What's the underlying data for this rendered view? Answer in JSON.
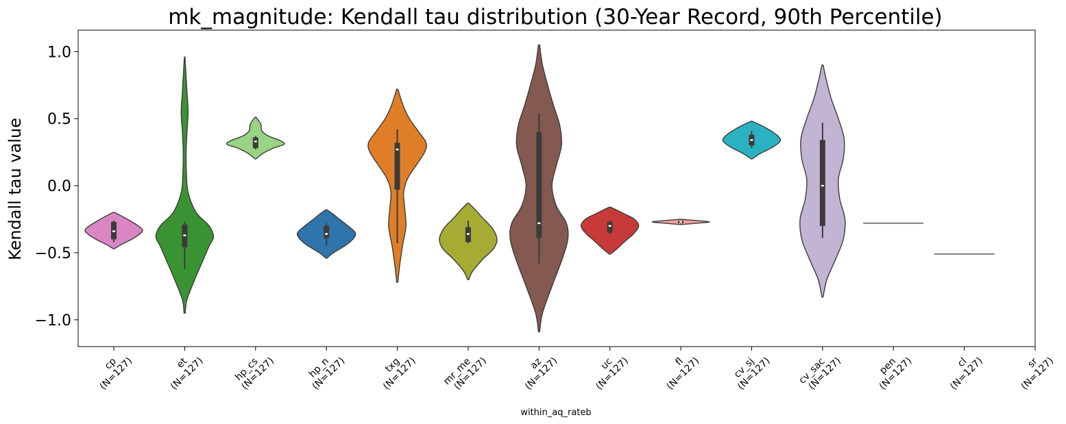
{
  "chart_data": {
    "type": "violin",
    "title": "mk_magnitude: Kendall tau distribution (30-Year Record, 90th Percentile)",
    "xlabel": "within_aq_rateb",
    "ylabel": "Kendall tau value",
    "ylim": [
      -1.2,
      1.16
    ],
    "yticks": [
      1.0,
      0.5,
      0.0,
      -0.5,
      -1.0
    ],
    "ytick_labels": [
      "1.0",
      "0.5",
      "0.0",
      "−0.5",
      "−1.0"
    ],
    "grid": false,
    "legend": "none",
    "categories": [
      {
        "label1": "cp",
        "label2": "(N=127)",
        "color": "#da86c5",
        "extent": [
          -0.47,
          -0.2
        ],
        "profile": [
          [
            -0.47,
            0.02
          ],
          [
            -0.44,
            0.25
          ],
          [
            -0.4,
            0.62
          ],
          [
            -0.36,
            0.9
          ],
          [
            -0.33,
            1.0
          ],
          [
            -0.3,
            0.85
          ],
          [
            -0.26,
            0.55
          ],
          [
            -0.23,
            0.3
          ],
          [
            -0.2,
            0.03
          ]
        ],
        "q1": -0.4,
        "median": -0.34,
        "q3": -0.27,
        "whisker": [
          -0.42,
          -0.26
        ]
      },
      {
        "label1": "et",
        "label2": "(N=127)",
        "color": "#3a9332",
        "extent": [
          -0.95,
          0.96
        ],
        "profile": [
          [
            -0.95,
            0.02
          ],
          [
            -0.85,
            0.08
          ],
          [
            -0.7,
            0.35
          ],
          [
            -0.55,
            0.65
          ],
          [
            -0.45,
            0.85
          ],
          [
            -0.38,
            1.0
          ],
          [
            -0.3,
            0.85
          ],
          [
            -0.2,
            0.4
          ],
          [
            -0.05,
            0.12
          ],
          [
            0.1,
            0.06
          ],
          [
            0.25,
            0.05
          ],
          [
            0.4,
            0.08
          ],
          [
            0.55,
            0.12
          ],
          [
            0.7,
            0.08
          ],
          [
            0.85,
            0.04
          ],
          [
            0.96,
            0.01
          ]
        ],
        "q1": -0.46,
        "median": -0.37,
        "q3": -0.29,
        "whisker": [
          -0.62,
          -0.27
        ]
      },
      {
        "label1": "hp_cs",
        "label2": "(N=127)",
        "color": "#98d483",
        "extent": [
          0.2,
          0.51
        ],
        "profile": [
          [
            0.2,
            0.02
          ],
          [
            0.24,
            0.25
          ],
          [
            0.28,
            0.62
          ],
          [
            0.31,
            1.0
          ],
          [
            0.34,
            0.82
          ],
          [
            0.37,
            0.45
          ],
          [
            0.41,
            0.22
          ],
          [
            0.46,
            0.18
          ],
          [
            0.51,
            0.02
          ]
        ],
        "q1": 0.28,
        "median": 0.33,
        "q3": 0.36,
        "whisker": [
          0.27,
          0.37
        ]
      },
      {
        "label1": "hp_n",
        "label2": "(N=127)",
        "color": "#2f75ac",
        "extent": [
          -0.54,
          -0.18
        ],
        "profile": [
          [
            -0.54,
            0.02
          ],
          [
            -0.5,
            0.25
          ],
          [
            -0.44,
            0.7
          ],
          [
            -0.39,
            0.95
          ],
          [
            -0.35,
            1.0
          ],
          [
            -0.3,
            0.75
          ],
          [
            -0.25,
            0.45
          ],
          [
            -0.21,
            0.22
          ],
          [
            -0.18,
            0.02
          ]
        ],
        "q1": -0.39,
        "median": -0.36,
        "q3": -0.3,
        "whisker": [
          -0.45,
          -0.28
        ]
      },
      {
        "label1": "txg",
        "label2": "(N=127)",
        "color": "#e07e27",
        "extent": [
          -0.72,
          0.72
        ],
        "profile": [
          [
            -0.72,
            0.02
          ],
          [
            -0.6,
            0.08
          ],
          [
            -0.45,
            0.18
          ],
          [
            -0.3,
            0.3
          ],
          [
            -0.15,
            0.25
          ],
          [
            -0.05,
            0.22
          ],
          [
            0.05,
            0.35
          ],
          [
            0.15,
            0.65
          ],
          [
            0.25,
            0.95
          ],
          [
            0.32,
            1.0
          ],
          [
            0.4,
            0.75
          ],
          [
            0.5,
            0.42
          ],
          [
            0.6,
            0.2
          ],
          [
            0.72,
            0.02
          ]
        ],
        "q1": -0.03,
        "median": 0.27,
        "q3": 0.32,
        "whisker": [
          -0.43,
          0.42
        ]
      },
      {
        "label1": "mr_me",
        "label2": "(N=127)",
        "color": "#a6ab34",
        "extent": [
          -0.7,
          -0.13
        ],
        "profile": [
          [
            -0.7,
            0.02
          ],
          [
            -0.64,
            0.15
          ],
          [
            -0.55,
            0.5
          ],
          [
            -0.47,
            0.88
          ],
          [
            -0.4,
            1.0
          ],
          [
            -0.32,
            0.85
          ],
          [
            -0.24,
            0.5
          ],
          [
            -0.18,
            0.25
          ],
          [
            -0.13,
            0.02
          ]
        ],
        "q1": -0.42,
        "median": -0.36,
        "q3": -0.31,
        "whisker": [
          -0.43,
          -0.26
        ]
      },
      {
        "label1": "az",
        "label2": "(N=127)",
        "color": "#845950",
        "extent": [
          -1.09,
          1.05
        ],
        "profile": [
          [
            -1.09,
            0.02
          ],
          [
            -0.95,
            0.12
          ],
          [
            -0.75,
            0.45
          ],
          [
            -0.55,
            0.8
          ],
          [
            -0.4,
            1.0
          ],
          [
            -0.28,
            0.95
          ],
          [
            -0.15,
            0.6
          ],
          [
            0.0,
            0.45
          ],
          [
            0.15,
            0.6
          ],
          [
            0.3,
            0.78
          ],
          [
            0.45,
            0.72
          ],
          [
            0.6,
            0.5
          ],
          [
            0.75,
            0.3
          ],
          [
            0.9,
            0.12
          ],
          [
            1.05,
            0.02
          ]
        ],
        "q1": -0.39,
        "median": -0.28,
        "q3": 0.4,
        "whisker": [
          -0.58,
          0.54
        ]
      },
      {
        "label1": "uc",
        "label2": "(N=127)",
        "color": "#c73a39",
        "extent": [
          -0.51,
          -0.16
        ],
        "profile": [
          [
            -0.51,
            0.02
          ],
          [
            -0.47,
            0.25
          ],
          [
            -0.41,
            0.55
          ],
          [
            -0.36,
            0.82
          ],
          [
            -0.3,
            1.0
          ],
          [
            -0.25,
            0.85
          ],
          [
            -0.21,
            0.5
          ],
          [
            -0.18,
            0.22
          ],
          [
            -0.16,
            0.02
          ]
        ],
        "q1": -0.35,
        "median": -0.3,
        "q3": -0.27,
        "whisker": [
          -0.36,
          -0.26
        ]
      },
      {
        "label1": "fl",
        "label2": "(N=127)",
        "color": "#f4a09b",
        "extent": [
          -0.29,
          -0.25
        ],
        "profile": [
          [
            -0.29,
            0.02
          ],
          [
            -0.28,
            0.55
          ],
          [
            -0.27,
            1.0
          ],
          [
            -0.26,
            0.55
          ],
          [
            -0.25,
            0.02
          ]
        ],
        "q1": -0.28,
        "median": -0.27,
        "q3": -0.26,
        "whisker": [
          -0.28,
          -0.26
        ]
      },
      {
        "label1": "cv_sj",
        "label2": "(N=127)",
        "color": "#2bb2c2",
        "extent": [
          0.2,
          0.48
        ],
        "profile": [
          [
            0.2,
            0.02
          ],
          [
            0.24,
            0.3
          ],
          [
            0.29,
            0.75
          ],
          [
            0.34,
            1.0
          ],
          [
            0.39,
            0.8
          ],
          [
            0.44,
            0.42
          ],
          [
            0.48,
            0.02
          ]
        ],
        "q1": 0.3,
        "median": 0.34,
        "q3": 0.38,
        "whisker": [
          0.28,
          0.41
        ]
      },
      {
        "label1": "cv_sac",
        "label2": "(N=127)",
        "color": "#c2b4d3",
        "extent": [
          -0.83,
          0.9
        ],
        "profile": [
          [
            -0.83,
            0.02
          ],
          [
            -0.7,
            0.15
          ],
          [
            -0.55,
            0.45
          ],
          [
            -0.4,
            0.72
          ],
          [
            -0.25,
            0.78
          ],
          [
            -0.1,
            0.6
          ],
          [
            0.05,
            0.55
          ],
          [
            0.2,
            0.72
          ],
          [
            0.35,
            0.75
          ],
          [
            0.5,
            0.55
          ],
          [
            0.65,
            0.3
          ],
          [
            0.8,
            0.12
          ],
          [
            0.9,
            0.02
          ]
        ],
        "q1": -0.3,
        "median": 0.0,
        "q3": 0.34,
        "whisker": [
          -0.39,
          0.47
        ]
      },
      {
        "label1": "pen",
        "label2": "(N=127)",
        "color": "#5a5a5a",
        "value": -0.28
      },
      {
        "label1": "cl",
        "label2": "(N=127)",
        "color": "#5a5a5a",
        "value": -0.51
      },
      {
        "label1": "sr",
        "label2": "(N=127)",
        "color": "#5a5a5a"
      }
    ]
  }
}
